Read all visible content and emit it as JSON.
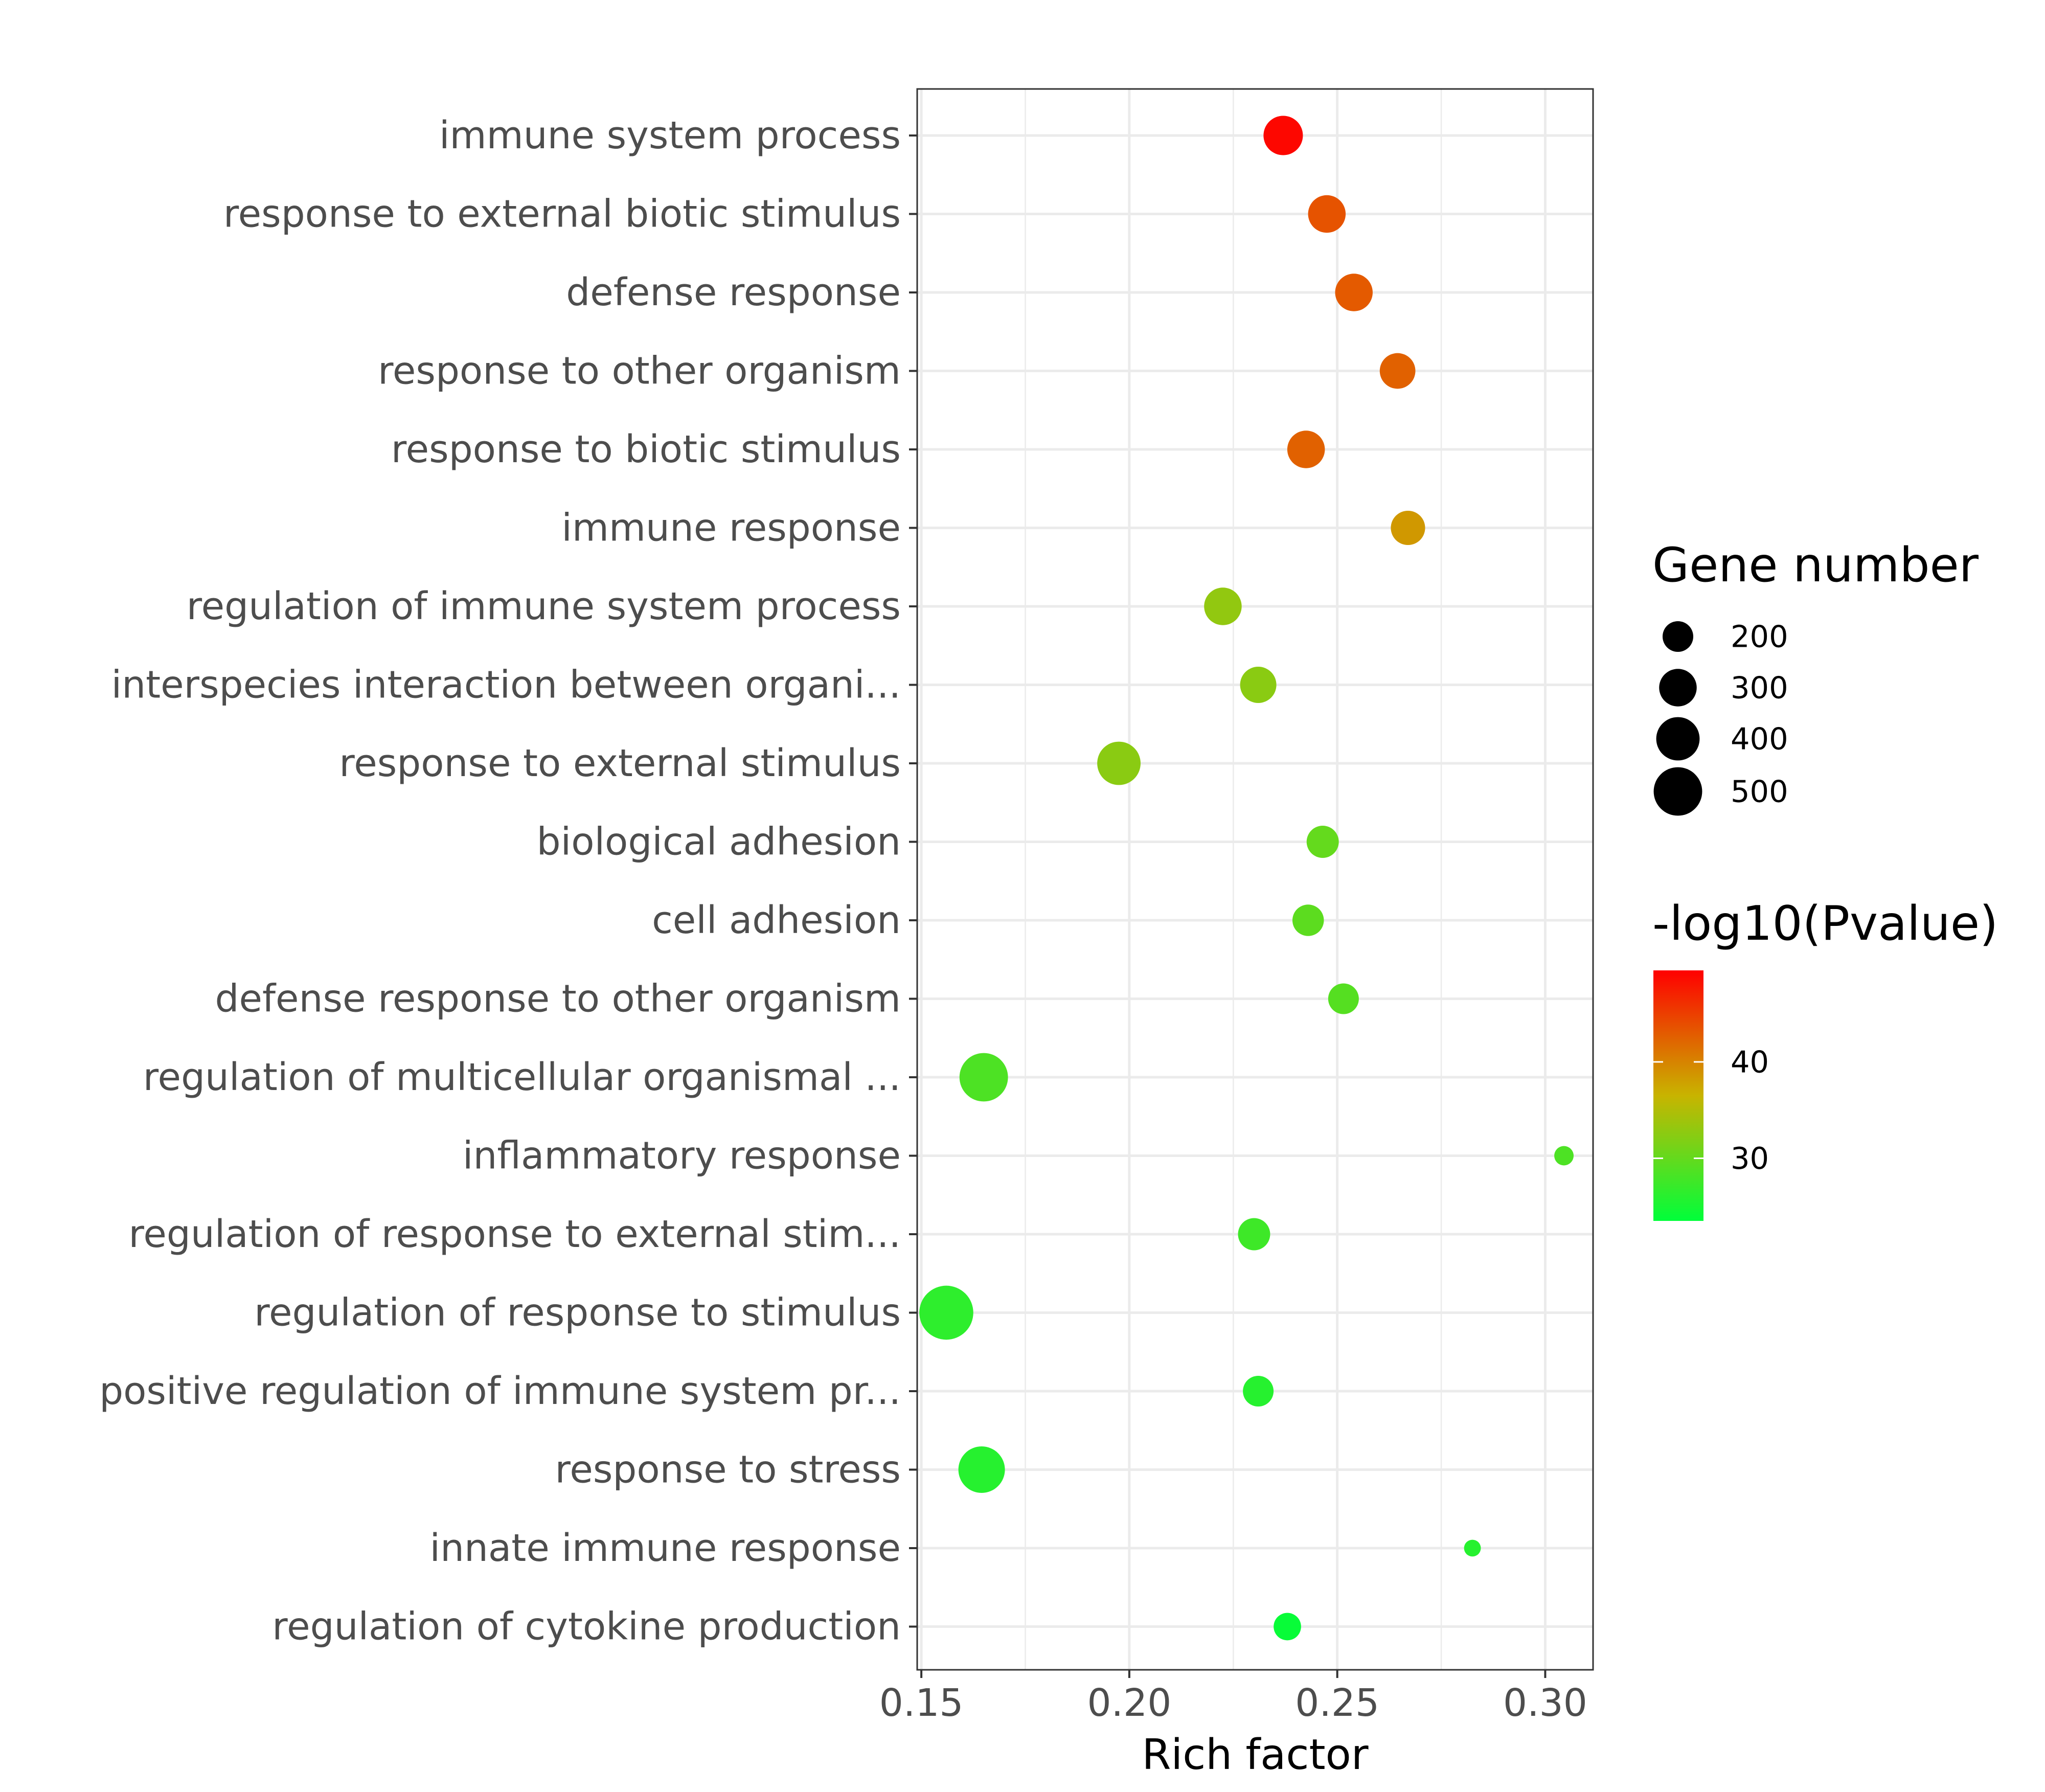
{
  "chart_data": {
    "type": "scatter",
    "title": "",
    "xlabel": "Rich factor",
    "ylabel": "",
    "xlim": [
      0.149,
      0.3115
    ],
    "xticks": [
      "0.15",
      "0.20",
      "0.25",
      "0.30"
    ],
    "xtick_values": [
      0.15,
      0.2,
      0.25,
      0.3
    ],
    "grid": true,
    "legend_position": "right",
    "categories": [
      "immune system process",
      "response to external biotic stimulus",
      "defense response",
      "response to other organism",
      "response to biotic stimulus",
      "immune response",
      "regulation of immune system process",
      "interspecies interaction between organi...",
      "response to external stimulus",
      "biological adhesion",
      "cell adhesion",
      "defense response to other organism",
      "regulation of multicellular organismal ...",
      "inflammatory response",
      "regulation of response to external stim...",
      "regulation of response to stimulus",
      "positive regulation of immune system pr...",
      "response to stress",
      "innate immune response",
      "regulation of cytokine production"
    ],
    "points": [
      {
        "term": "immune system process",
        "rich_factor": 0.237,
        "gene_number": 330,
        "neg_log10_p": 49.0
      },
      {
        "term": "response to external biotic stimulus",
        "rich_factor": 0.2475,
        "gene_number": 300,
        "neg_log10_p": 43.5
      },
      {
        "term": "defense response",
        "rich_factor": 0.254,
        "gene_number": 300,
        "neg_log10_p": 43.0
      },
      {
        "term": "response to other organism",
        "rich_factor": 0.2645,
        "gene_number": 270,
        "neg_log10_p": 42.5
      },
      {
        "term": "response to biotic stimulus",
        "rich_factor": 0.2425,
        "gene_number": 300,
        "neg_log10_p": 42.5
      },
      {
        "term": "immune response",
        "rich_factor": 0.267,
        "gene_number": 250,
        "neg_log10_p": 38.5
      },
      {
        "term": "regulation of immune system process",
        "rich_factor": 0.2225,
        "gene_number": 300,
        "neg_log10_p": 33.0
      },
      {
        "term": "interspecies interaction between organi...",
        "rich_factor": 0.231,
        "gene_number": 280,
        "neg_log10_p": 32.5
      },
      {
        "term": "response to external stimulus",
        "rich_factor": 0.1975,
        "gene_number": 400,
        "neg_log10_p": 32.5
      },
      {
        "term": "biological adhesion",
        "rich_factor": 0.2465,
        "gene_number": 220,
        "neg_log10_p": 30.0
      },
      {
        "term": "cell adhesion",
        "rich_factor": 0.243,
        "gene_number": 210,
        "neg_log10_p": 29.5
      },
      {
        "term": "defense response to other organism",
        "rich_factor": 0.2515,
        "gene_number": 200,
        "neg_log10_p": 29.0
      },
      {
        "term": "regulation of multicellular organismal ...",
        "rich_factor": 0.165,
        "gene_number": 500,
        "neg_log10_p": 28.5
      },
      {
        "term": "inflammatory response",
        "rich_factor": 0.3045,
        "gene_number": 80,
        "neg_log10_p": 28.5
      },
      {
        "term": "regulation of response to external stim...",
        "rich_factor": 0.23,
        "gene_number": 220,
        "neg_log10_p": 27.5
      },
      {
        "term": "regulation of response to stimulus",
        "rich_factor": 0.156,
        "gene_number": 620,
        "neg_log10_p": 26.5
      },
      {
        "term": "positive regulation of immune system pr...",
        "rich_factor": 0.231,
        "gene_number": 200,
        "neg_log10_p": 26.0
      },
      {
        "term": "response to stress",
        "rich_factor": 0.1645,
        "gene_number": 460,
        "neg_log10_p": 26.0
      },
      {
        "term": "innate immune response",
        "rich_factor": 0.2825,
        "gene_number": 60,
        "neg_log10_p": 26.0
      },
      {
        "term": "regulation of cytokine production",
        "rich_factor": 0.238,
        "gene_number": 160,
        "neg_log10_p": 24.0
      }
    ],
    "size_legend": {
      "title": "Gene number",
      "entries": [
        {
          "label": "200",
          "value": 200
        },
        {
          "label": "300",
          "value": 300
        },
        {
          "label": "400",
          "value": 400
        },
        {
          "label": "500",
          "value": 500
        }
      ]
    },
    "color_legend": {
      "title": "-log10(Pvalue)",
      "min": 23.5,
      "max": 49.5,
      "low_color": "#00ff3a",
      "mid_color": "#c8b400",
      "high_color": "#ff0000",
      "ticks": [
        {
          "label": "30",
          "value": 30
        },
        {
          "label": "40",
          "value": 40
        }
      ]
    }
  }
}
